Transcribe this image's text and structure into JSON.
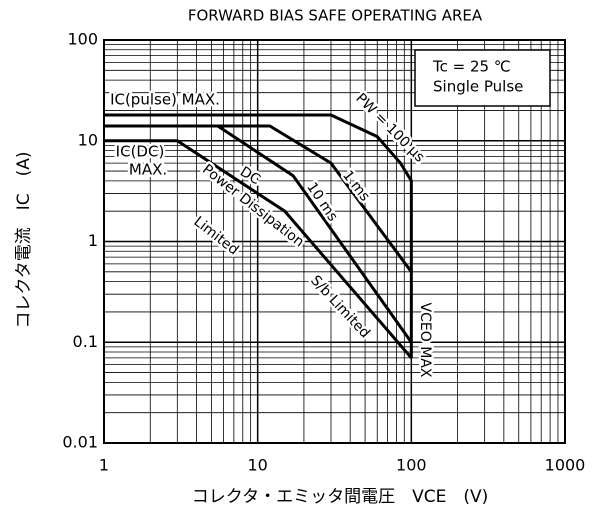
{
  "chart_data": {
    "type": "line",
    "title": "FORWARD BIAS SAFE OPERATING AREA",
    "x_label": "コレクタ・エミッタ間電圧　VCE　(V)",
    "y_label": "コレクタ電流　IC　(A)",
    "log_x": true,
    "log_y": true,
    "grid": true,
    "minor_grid": true,
    "xlim": [
      1,
      1000
    ],
    "xticks": [
      1,
      10,
      100,
      1000
    ],
    "ylim": [
      0.01,
      100
    ],
    "yticks": [
      0.01,
      0.1,
      1,
      10,
      100
    ],
    "series": [
      {
        "color": "#000000",
        "x": [
          1,
          30,
          60,
          85,
          100,
          100
        ],
        "values": [
          18,
          18,
          11,
          6,
          4,
          0.07
        ]
      },
      {
        "color": "#000000",
        "x": [
          1,
          12,
          30,
          100
        ],
        "values": [
          14,
          14,
          6,
          0.5
        ]
      },
      {
        "color": "#000000",
        "x": [
          1,
          5.5,
          17,
          100
        ],
        "values": [
          14,
          14,
          4.5,
          0.1
        ]
      },
      {
        "color": "#000000",
        "x": [
          1,
          3,
          15,
          100
        ],
        "values": [
          10,
          10,
          2,
          0.07
        ]
      }
    ],
    "annotations": [
      "IC(pulse) MAX.",
      "IC(DC)",
      "MAX.",
      "PW = 100 µs",
      "1 ms",
      "10 ms",
      "DC",
      "Power Dissipation",
      "Limited",
      "S/b Limited",
      "VCEO MAX"
    ],
    "conditions": [
      "Tc = 25 ℃",
      "Single Pulse"
    ]
  }
}
